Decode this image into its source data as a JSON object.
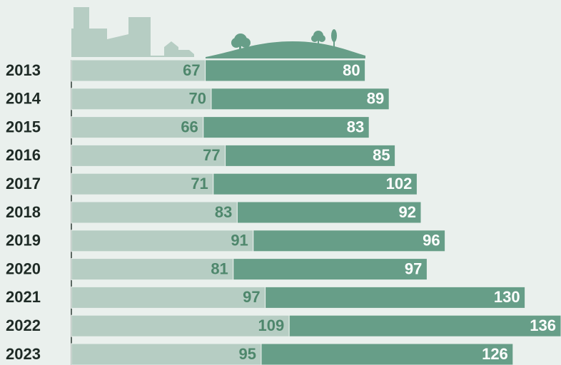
{
  "chart_data": {
    "type": "bar",
    "orientation": "horizontal",
    "stacked": true,
    "categories": [
      "2013",
      "2014",
      "2015",
      "2016",
      "2017",
      "2018",
      "2019",
      "2020",
      "2021",
      "2022",
      "2023"
    ],
    "series": [
      {
        "color": "#b6cdc3",
        "label_color": "#4e876c",
        "values": [
          67,
          70,
          66,
          77,
          71,
          83,
          91,
          81,
          97,
          109,
          95
        ]
      },
      {
        "color": "#679e88",
        "label_color": "#ffffff",
        "values": [
          80,
          89,
          83,
          85,
          102,
          92,
          96,
          97,
          130,
          136,
          126
        ]
      }
    ]
  }
}
